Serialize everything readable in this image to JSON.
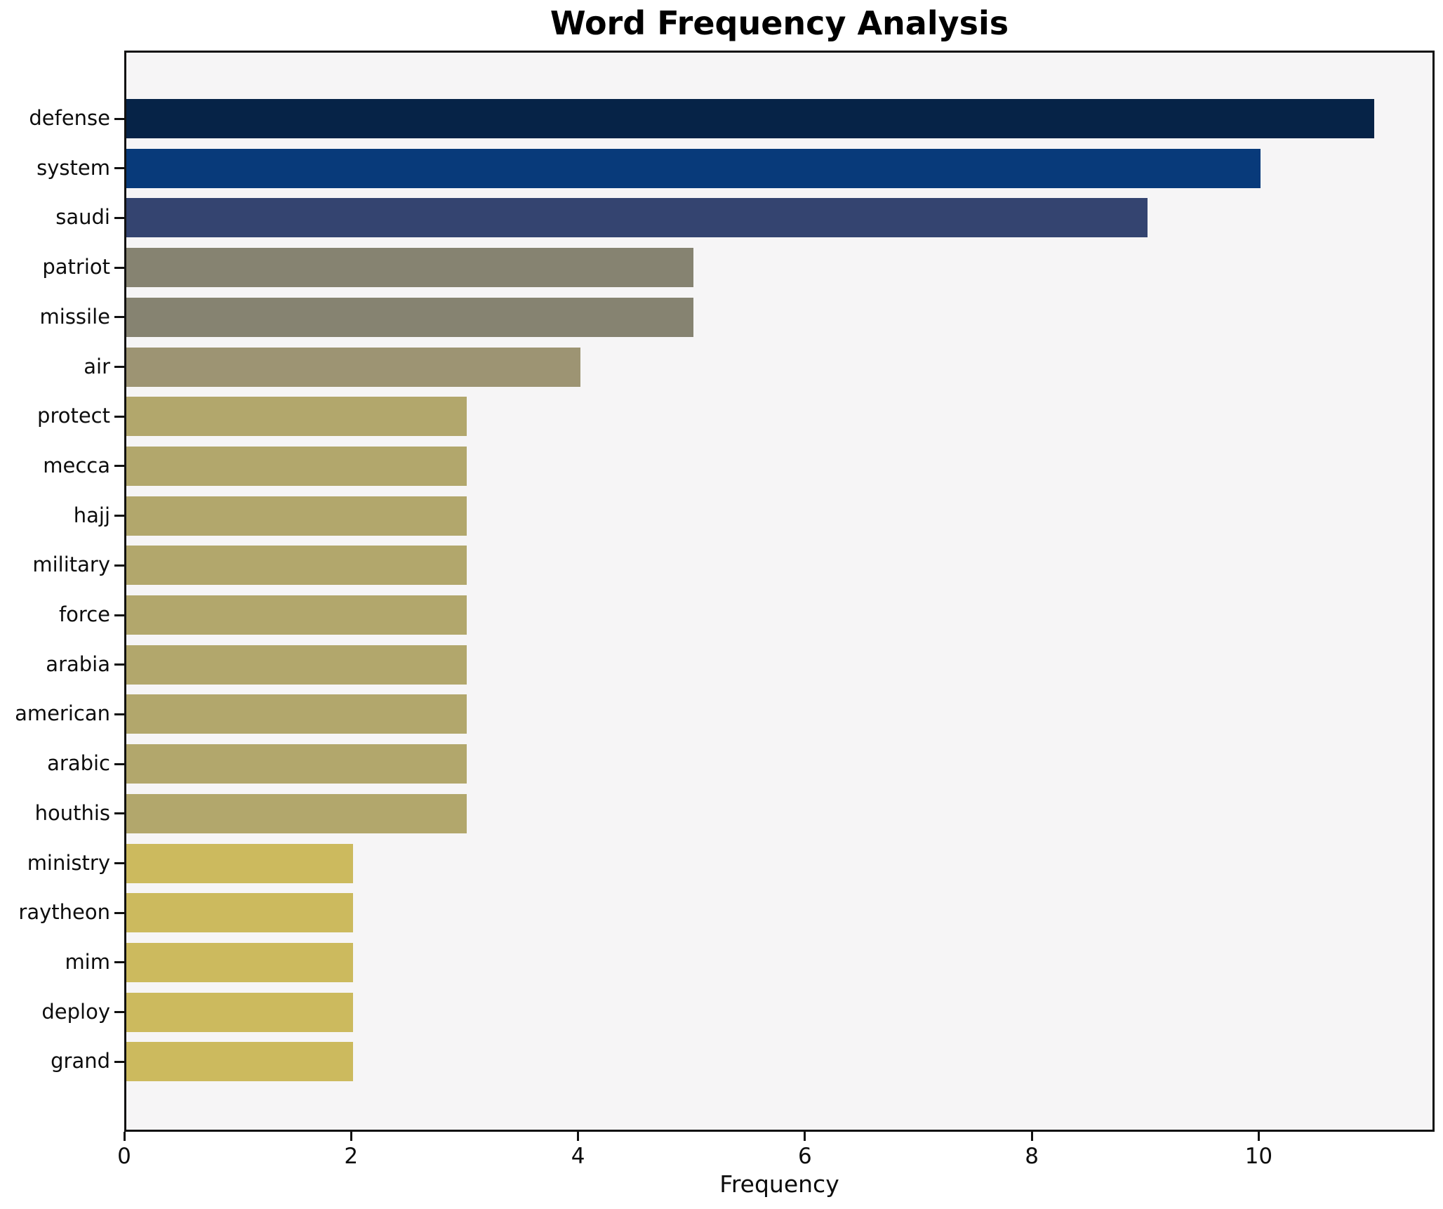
{
  "title": "Word Frequency Analysis",
  "xlabel": "Frequency",
  "chart_data": {
    "type": "bar",
    "orientation": "horizontal",
    "title": "Word Frequency Analysis",
    "xlabel": "Frequency",
    "ylabel": "",
    "categories": [
      "defense",
      "system",
      "saudi",
      "patriot",
      "missile",
      "air",
      "protect",
      "mecca",
      "hajj",
      "military",
      "force",
      "arabia",
      "american",
      "arabic",
      "houthis",
      "ministry",
      "raytheon",
      "mim",
      "deploy",
      "grand"
    ],
    "values": [
      11,
      10,
      9,
      5,
      5,
      4,
      3,
      3,
      3,
      3,
      3,
      3,
      3,
      3,
      3,
      2,
      2,
      2,
      2,
      2
    ],
    "bar_colors": [
      "#062347",
      "#083a7a",
      "#344470",
      "#868371",
      "#868371",
      "#9d9473",
      "#b2a76c",
      "#b2a76c",
      "#b2a76c",
      "#b2a76c",
      "#b2a76c",
      "#b2a76c",
      "#b2a76c",
      "#b2a76c",
      "#b2a76c",
      "#ccba5e",
      "#ccba5e",
      "#ccba5e",
      "#ccba5e",
      "#ccba5e"
    ],
    "xlim": [
      0,
      11.55
    ],
    "x_ticks": [
      0,
      2,
      4,
      6,
      8,
      10
    ],
    "grid": false,
    "legend_position": "none",
    "plot_background": "#f6f5f6",
    "figure_background": "#ffffff",
    "spine_color": "#111111"
  }
}
